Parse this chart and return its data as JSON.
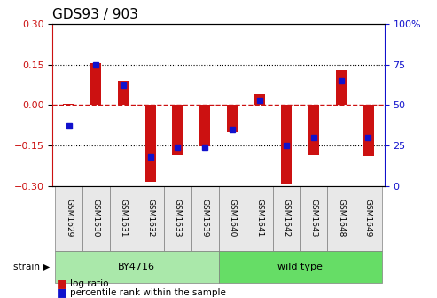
{
  "title": "GDS93 / 903",
  "samples": [
    "GSM1629",
    "GSM1630",
    "GSM1631",
    "GSM1632",
    "GSM1633",
    "GSM1639",
    "GSM1640",
    "GSM1641",
    "GSM1642",
    "GSM1643",
    "GSM1648",
    "GSM1649"
  ],
  "log_ratio": [
    0.005,
    0.155,
    0.09,
    -0.285,
    -0.185,
    -0.155,
    -0.1,
    0.04,
    -0.295,
    -0.185,
    0.13,
    -0.19
  ],
  "percentile": [
    37,
    75,
    62,
    18,
    24,
    24,
    35,
    53,
    25,
    30,
    65,
    30
  ],
  "strain_groups": [
    {
      "label": "BY4716",
      "start": 0,
      "end": 6,
      "color": "#aae8aa"
    },
    {
      "label": "wild type",
      "start": 6,
      "end": 12,
      "color": "#66dd66"
    }
  ],
  "ylim": [
    -0.3,
    0.3
  ],
  "yticks_left": [
    -0.3,
    -0.15,
    0.0,
    0.15,
    0.3
  ],
  "yticks_right": [
    0,
    25,
    50,
    75,
    100
  ],
  "bar_color": "#cc1111",
  "dot_color": "#1111cc",
  "bg_color": "#ffffff",
  "grid_color": "#000000",
  "zero_line_color": "#cc1111",
  "tick_label_color_left": "#cc1111",
  "tick_label_color_right": "#1111cc",
  "figsize": [
    4.93,
    3.36
  ],
  "dpi": 100
}
